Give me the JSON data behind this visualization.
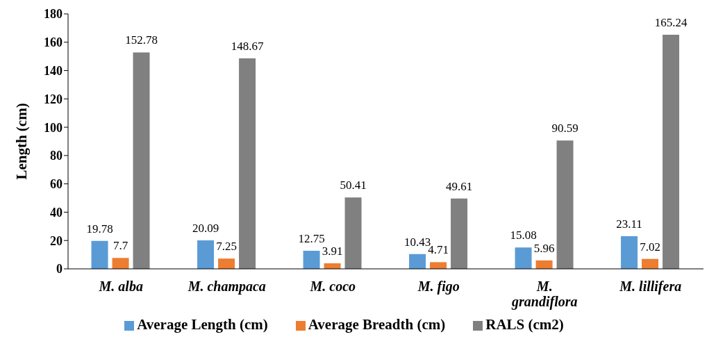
{
  "chart_data": {
    "type": "bar",
    "ylabel": "Length (cm)",
    "categories": [
      "M. alba",
      "M. champaca",
      "M. coco",
      "M. figo",
      "M. grandiflora",
      "M. lillifera"
    ],
    "series": [
      {
        "name": "Average Length (cm)",
        "color": "#5b9bd5",
        "values": [
          19.78,
          20.09,
          12.75,
          10.43,
          15.08,
          23.11
        ]
      },
      {
        "name": "Average Breadth (cm)",
        "color": "#ed7d31",
        "values": [
          7.7,
          7.25,
          3.91,
          4.71,
          5.96,
          7.02
        ]
      },
      {
        "name": "RALS (cm2)",
        "color": "#808080",
        "values": [
          152.78,
          148.67,
          50.41,
          49.61,
          90.59,
          165.24
        ]
      }
    ],
    "ylim": [
      0,
      180
    ],
    "yticks": [
      0,
      20,
      40,
      60,
      80,
      100,
      120,
      140,
      160,
      180
    ],
    "grid": false,
    "legend": "bottom",
    "data_labels": true
  }
}
